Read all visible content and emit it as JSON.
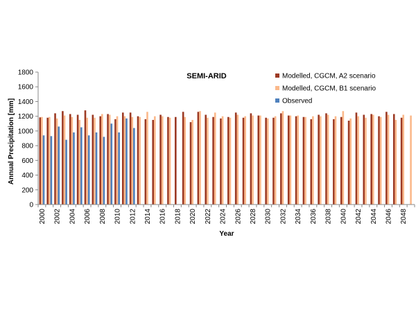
{
  "chart_data": {
    "type": "bar",
    "title": "SEMI-ARID",
    "xlabel": "Year",
    "ylabel": "Annual Precipitation  [mm]",
    "ylim": [
      0,
      1800
    ],
    "yticks": [
      0,
      200,
      400,
      600,
      800,
      1000,
      1200,
      1400,
      1600,
      1800
    ],
    "grid": false,
    "legend_position": "top-right",
    "x": [
      2000,
      2001,
      2002,
      2003,
      2004,
      2005,
      2006,
      2007,
      2008,
      2009,
      2010,
      2011,
      2012,
      2013,
      2014,
      2015,
      2016,
      2017,
      2018,
      2019,
      2020,
      2021,
      2022,
      2023,
      2024,
      2025,
      2026,
      2027,
      2028,
      2029,
      2030,
      2031,
      2032,
      2033,
      2034,
      2035,
      2036,
      2037,
      2038,
      2039,
      2040,
      2041,
      2042,
      2043,
      2044,
      2045,
      2046,
      2047,
      2048,
      2049
    ],
    "xtick_labels": [
      "2000",
      "2002",
      "2004",
      "2006",
      "2008",
      "2010",
      "2012",
      "2014",
      "2016",
      "2018",
      "2020",
      "2022",
      "2024",
      "2026",
      "2028",
      "2030",
      "2032",
      "2034",
      "2036",
      "2038",
      "2040",
      "2042",
      "2044",
      "2046",
      "2048"
    ],
    "series": [
      {
        "name": "Modelled, CGCM, A2 scenario",
        "color": "#9c3a24",
        "values": [
          1185,
          1180,
          1240,
          1270,
          1230,
          1220,
          1280,
          1220,
          1200,
          1230,
          1160,
          1250,
          1250,
          1200,
          1160,
          1150,
          1220,
          1190,
          1190,
          1260,
          1120,
          1260,
          1220,
          1190,
          1170,
          1190,
          1250,
          1180,
          1240,
          1210,
          1180,
          1180,
          1240,
          1210,
          1200,
          1190,
          1160,
          1220,
          1240,
          1160,
          1190,
          1140,
          1250,
          1220,
          1230,
          1200,
          1260,
          1230,
          1180,
          null
        ]
      },
      {
        "name": "Modelled, CGCM, B1 scenario",
        "color": "#fbb98b",
        "values": [
          1190,
          1190,
          1170,
          1210,
          1190,
          1150,
          1180,
          1180,
          1230,
          1220,
          1200,
          1200,
          1190,
          1190,
          1260,
          1200,
          1200,
          1180,
          null,
          1190,
          1150,
          1270,
          1180,
          1250,
          1200,
          1180,
          1220,
          1200,
          1210,
          1210,
          1170,
          1200,
          1270,
          1210,
          1210,
          1190,
          1200,
          1200,
          1220,
          1200,
          1270,
          1170,
          1200,
          1180,
          1220,
          1190,
          1220,
          1150,
          1220,
          1210
        ]
      },
      {
        "name": "Observed",
        "color": "#4f81bd",
        "values": [
          940,
          930,
          1060,
          880,
          980,
          1050,
          940,
          980,
          920,
          1100,
          980,
          1170,
          1040,
          null,
          null,
          null,
          null,
          null,
          null,
          null,
          null,
          null,
          null,
          null,
          null,
          null,
          null,
          null,
          null,
          null,
          null,
          null,
          null,
          null,
          null,
          null,
          null,
          null,
          null,
          null,
          null,
          null,
          null,
          null,
          null,
          null,
          null,
          null,
          null,
          null
        ]
      }
    ]
  }
}
